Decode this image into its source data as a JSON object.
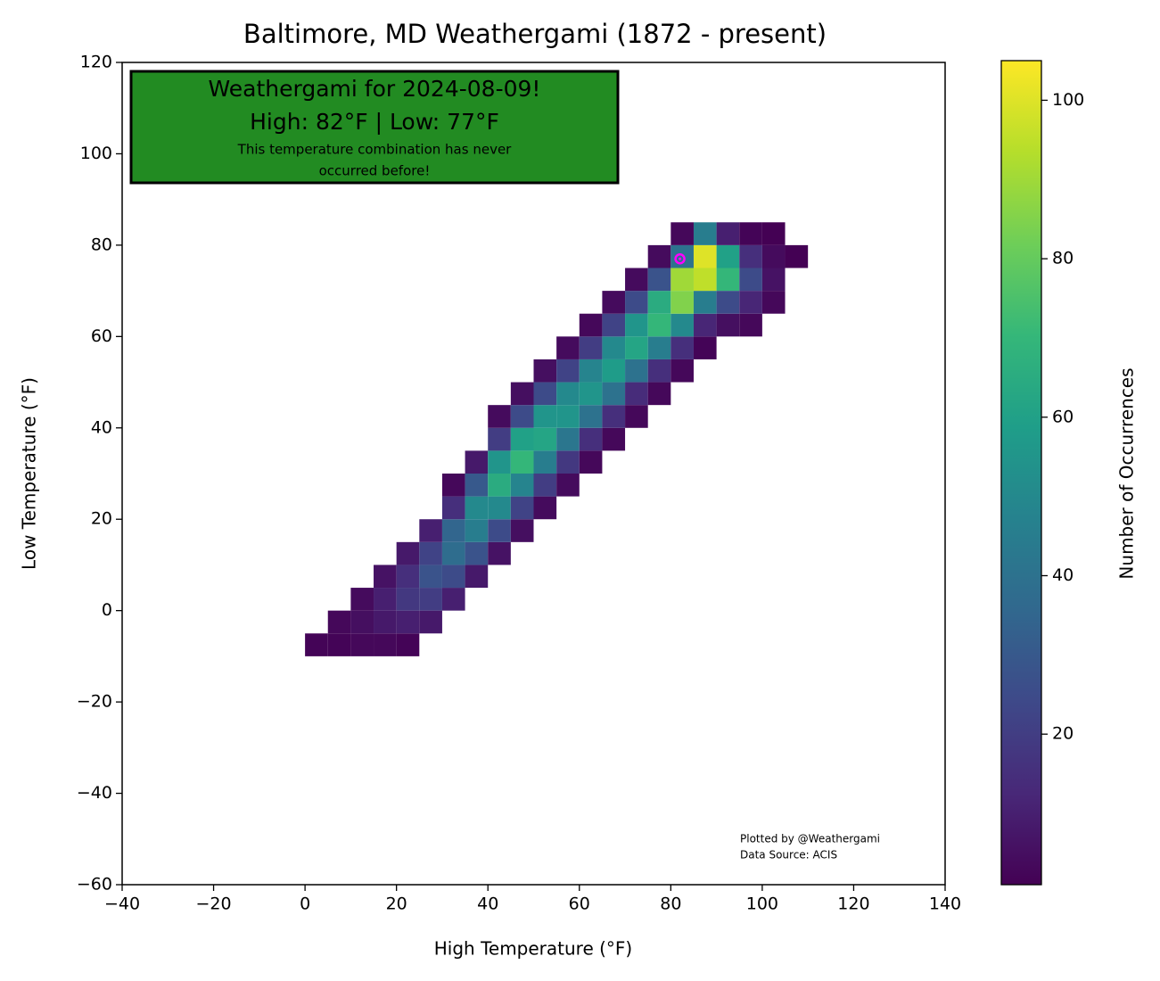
{
  "chart_data": {
    "type": "heatmap",
    "title": "Baltimore, MD Weathergami (1872 - present)",
    "x_label": "High Temperature (°F)",
    "y_label": "Low Temperature (°F)",
    "colorbar_label": "Number of Occurrences",
    "colormap": "viridis",
    "clim": [
      1,
      105
    ],
    "cticks": [
      20,
      40,
      60,
      80,
      100
    ],
    "xlim": [
      -40,
      140
    ],
    "xticks": [
      {
        "value": -40,
        "label": "−40"
      },
      {
        "value": -20,
        "label": "−20"
      },
      0,
      20,
      40,
      60,
      80,
      100,
      120,
      140
    ],
    "ylim": [
      -60,
      120
    ],
    "yticks": [
      {
        "value": -60,
        "label": "−60"
      },
      {
        "value": -40,
        "label": "−40"
      },
      {
        "value": -20,
        "label": "−20"
      },
      0,
      20,
      40,
      60,
      80,
      100,
      120
    ],
    "columns": [
      {
        "x": 0,
        "y0": -10,
        "values": [
          2
        ]
      },
      {
        "x": 5,
        "y0": -10,
        "values": [
          2,
          3
        ]
      },
      {
        "x": 10,
        "y0": -10,
        "values": [
          3,
          5,
          4
        ]
      },
      {
        "x": 15,
        "y0": -10,
        "values": [
          3,
          8,
          10,
          6
        ]
      },
      {
        "x": 20,
        "y0": -10,
        "values": [
          2,
          10,
          18,
          15,
          8
        ]
      },
      {
        "x": 25,
        "y0": -5,
        "values": [
          8,
          20,
          28,
          22,
          10
        ]
      },
      {
        "x": 30,
        "y0": 0,
        "values": [
          10,
          25,
          38,
          35,
          15,
          3
        ]
      },
      {
        "x": 35,
        "y0": 5,
        "values": [
          8,
          28,
          45,
          50,
          30,
          8
        ]
      },
      {
        "x": 40,
        "y0": 10,
        "values": [
          6,
          25,
          50,
          65,
          55,
          20,
          4
        ]
      },
      {
        "x": 45,
        "y0": 15,
        "values": [
          5,
          22,
          48,
          70,
          60,
          25,
          5
        ]
      },
      {
        "x": 50,
        "y0": 20,
        "values": [
          4,
          20,
          45,
          62,
          55,
          25,
          5
        ]
      },
      {
        "x": 55,
        "y0": 25,
        "values": [
          4,
          18,
          42,
          55,
          50,
          22,
          4
        ]
      },
      {
        "x": 60,
        "y0": 30,
        "values": [
          3,
          15,
          40,
          55,
          48,
          20,
          3
        ]
      },
      {
        "x": 65,
        "y0": 35,
        "values": [
          3,
          15,
          40,
          58,
          50,
          22,
          4
        ]
      },
      {
        "x": 70,
        "y0": 40,
        "values": [
          3,
          14,
          40,
          62,
          55,
          25,
          4
        ]
      },
      {
        "x": 75,
        "y0": 45,
        "values": [
          3,
          15,
          45,
          70,
          65,
          28,
          4
        ]
      },
      {
        "x": 80,
        "y0": 50,
        "values": [
          3,
          15,
          50,
          85,
          90,
          40,
          3
        ]
      },
      {
        "x": 85,
        "y0": 55,
        "values": [
          2,
          12,
          45,
          95,
          100,
          45
        ]
      },
      {
        "x": 90,
        "y0": 60,
        "values": [
          5,
          25,
          70,
          60,
          10
        ]
      },
      {
        "x": 95,
        "y0": 60,
        "values": [
          3,
          12,
          25,
          15,
          2
        ]
      },
      {
        "x": 100,
        "y0": 65,
        "values": [
          3,
          6,
          4,
          1
        ]
      },
      {
        "x": 105,
        "y0": 75,
        "values": [
          1
        ]
      }
    ],
    "highlight": {
      "x": 82,
      "y": 77,
      "color": "#ff00ff"
    },
    "box": {
      "color": "#228b22",
      "line1": "Weathergami for 2024-08-09!",
      "line2": "High: 82°F  |  Low: 77°F",
      "note": [
        "This temperature combination has never",
        "occurred before!"
      ]
    },
    "credits": [
      "Plotted by @Weathergami",
      "Data Source: ACIS"
    ]
  }
}
